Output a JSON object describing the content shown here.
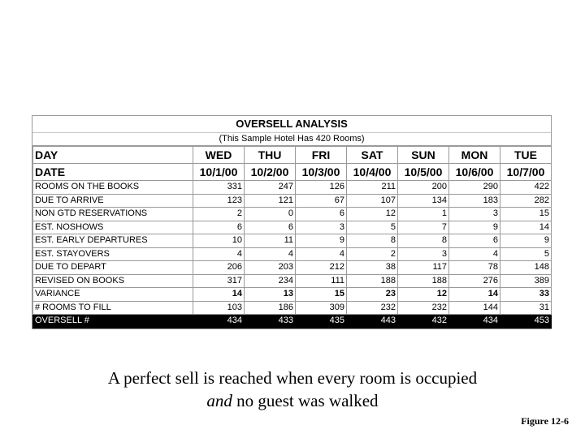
{
  "table": {
    "title": "OVERSELL ANALYSIS",
    "subtitle": "(This Sample Hotel Has 420 Rooms)",
    "day_header": "DAY",
    "date_header": "DATE",
    "days": [
      "WED",
      "THU",
      "FRI",
      "SAT",
      "SUN",
      "MON",
      "TUE"
    ],
    "dates": [
      "10/1/00",
      "10/2/00",
      "10/3/00",
      "10/4/00",
      "10/5/00",
      "10/6/00",
      "10/7/00"
    ],
    "rows": [
      {
        "label": "ROOMS ON THE BOOKS",
        "values": [
          "331",
          "247",
          "126",
          "211",
          "200",
          "290",
          "422"
        ]
      },
      {
        "label": "DUE TO ARRIVE",
        "values": [
          "123",
          "121",
          "67",
          "107",
          "134",
          "183",
          "282"
        ]
      },
      {
        "label": "NON GTD RESERVATIONS",
        "values": [
          "2",
          "0",
          "6",
          "12",
          "1",
          "3",
          "15"
        ]
      },
      {
        "label": "EST. NOSHOWS",
        "values": [
          "6",
          "6",
          "3",
          "5",
          "7",
          "9",
          "14"
        ]
      },
      {
        "label": "EST. EARLY DEPARTURES",
        "values": [
          "10",
          "11",
          "9",
          "8",
          "8",
          "6",
          "9"
        ]
      },
      {
        "label": "EST. STAYOVERS",
        "values": [
          "4",
          "4",
          "4",
          "2",
          "3",
          "4",
          "5"
        ]
      },
      {
        "label": "DUE TO DEPART",
        "values": [
          "206",
          "203",
          "212",
          "38",
          "117",
          "78",
          "148"
        ]
      },
      {
        "label": "REVISED ON BOOKS",
        "values": [
          "317",
          "234",
          "111",
          "188",
          "188",
          "276",
          "389"
        ]
      },
      {
        "label": "VARIANCE",
        "values": [
          "14",
          "13",
          "15",
          "23",
          "12",
          "14",
          "33"
        ]
      },
      {
        "label": "# ROOMS TO FILL",
        "values": [
          "103",
          "186",
          "309",
          "232",
          "232",
          "144",
          "31"
        ]
      },
      {
        "label": "OVERSELL #",
        "values": [
          "434",
          "433",
          "435",
          "443",
          "432",
          "434",
          "453"
        ]
      }
    ]
  },
  "caption": {
    "line1": "A perfect sell is reached when every room is occupied",
    "line2_italic": "and",
    "line2_rest": " no guest was walked"
  },
  "figure_label": "Figure 12-6"
}
